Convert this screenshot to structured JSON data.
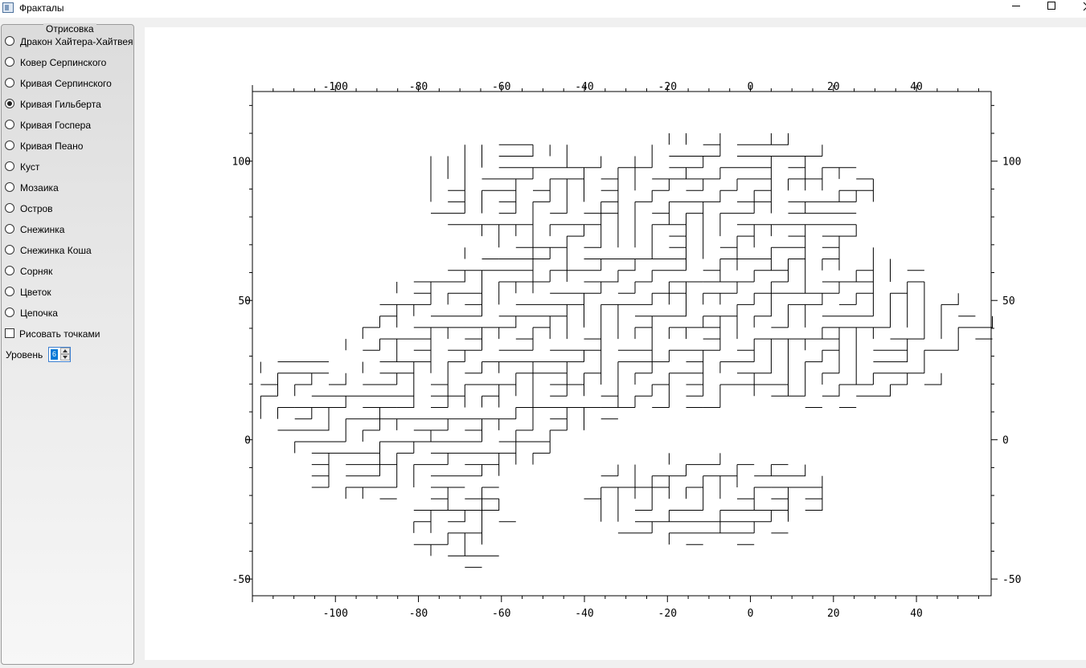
{
  "window": {
    "title": "Фракталы",
    "icons": {
      "app": "app-icon",
      "minimize": "minimize-icon",
      "maximize": "maximize-icon",
      "close": "close-icon"
    }
  },
  "panel": {
    "group_title": "Отрисовка",
    "options": [
      {
        "label": "Дракон Хайтера-Хайтвея",
        "checked": false
      },
      {
        "label": "Ковер Серпинского",
        "checked": false
      },
      {
        "label": "Кривая Серпинского",
        "checked": false
      },
      {
        "label": "Кривая Гильберта",
        "checked": true
      },
      {
        "label": "Кривая Госпера",
        "checked": false
      },
      {
        "label": "Кривая Пеано",
        "checked": false
      },
      {
        "label": "Куст",
        "checked": false
      },
      {
        "label": "Мозаика",
        "checked": false
      },
      {
        "label": "Остров",
        "checked": false
      },
      {
        "label": "Снежинка",
        "checked": false
      },
      {
        "label": "Снежинка Коша",
        "checked": false
      },
      {
        "label": "Сорняк",
        "checked": false
      },
      {
        "label": "Цветок",
        "checked": false
      },
      {
        "label": "Цепочка",
        "checked": false
      }
    ],
    "draw_points": {
      "label": "Рисовать точками",
      "checked": false
    },
    "level": {
      "label": "Уровень",
      "value": "6"
    }
  },
  "plot": {
    "x_ticks": [
      "-100",
      "-80",
      "-60",
      "-40",
      "-20",
      "0",
      "20",
      "40"
    ],
    "y_ticks": [
      "100",
      "50",
      "0",
      "-50"
    ],
    "xlim": [
      -120,
      58
    ],
    "ylim": [
      -56,
      125
    ],
    "grid": false,
    "line_color": "#000000"
  }
}
